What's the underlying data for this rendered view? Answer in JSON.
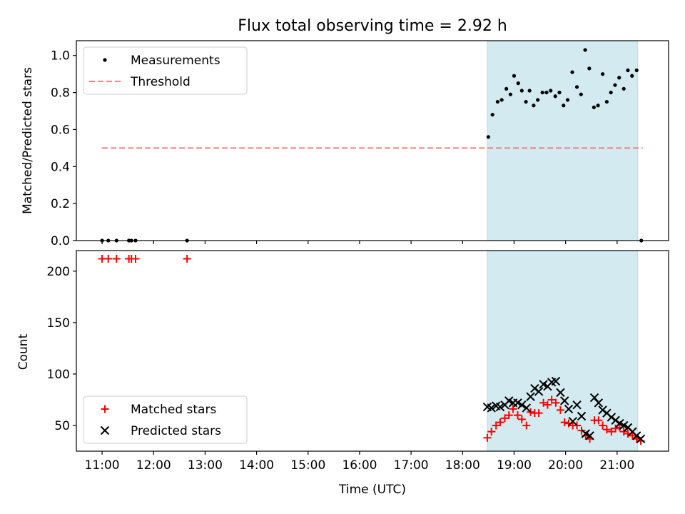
{
  "chart_data": [
    {
      "type": "scatter",
      "title": "Flux total observing time = 2.92 h",
      "xlabel": "",
      "ylabel": "Matched/Predicted stars",
      "xlim": [
        10.5,
        22.0
      ],
      "ylim": [
        0.0,
        1.08
      ],
      "yticks": [
        0.0,
        0.2,
        0.4,
        0.6,
        0.8,
        1.0
      ],
      "ytick_labels": [
        "0.0",
        "0.2",
        "0.4",
        "0.6",
        "0.8",
        "1.0"
      ],
      "grid": false,
      "legend_position": "top-left",
      "shaded_region": {
        "x_start": 18.48,
        "x_end": 21.4,
        "color": "#d2eaf0"
      },
      "series": [
        {
          "name": "Measurements",
          "kind": "points",
          "color": "#000000",
          "points": [
            [
              11.0,
              0.0
            ],
            [
              11.12,
              0.0
            ],
            [
              11.28,
              0.0
            ],
            [
              11.52,
              0.0
            ],
            [
              11.57,
              0.0
            ],
            [
              11.65,
              0.0
            ],
            [
              12.65,
              0.0
            ],
            [
              18.5,
              0.56
            ],
            [
              18.58,
              0.68
            ],
            [
              18.68,
              0.75
            ],
            [
              18.76,
              0.76
            ],
            [
              18.85,
              0.82
            ],
            [
              18.93,
              0.79
            ],
            [
              19.0,
              0.89
            ],
            [
              19.08,
              0.85
            ],
            [
              19.15,
              0.81
            ],
            [
              19.23,
              0.75
            ],
            [
              19.3,
              0.81
            ],
            [
              19.38,
              0.73
            ],
            [
              19.46,
              0.76
            ],
            [
              19.55,
              0.8
            ],
            [
              19.63,
              0.8
            ],
            [
              19.71,
              0.81
            ],
            [
              19.8,
              0.78
            ],
            [
              19.88,
              0.8
            ],
            [
              19.96,
              0.73
            ],
            [
              20.04,
              0.76
            ],
            [
              20.13,
              0.91
            ],
            [
              20.22,
              0.83
            ],
            [
              20.3,
              0.79
            ],
            [
              20.38,
              1.03
            ],
            [
              20.46,
              0.93
            ],
            [
              20.55,
              0.72
            ],
            [
              20.63,
              0.73
            ],
            [
              20.72,
              0.9
            ],
            [
              20.8,
              0.75
            ],
            [
              20.88,
              0.8
            ],
            [
              20.96,
              0.84
            ],
            [
              21.04,
              0.88
            ],
            [
              21.13,
              0.82
            ],
            [
              21.21,
              0.92
            ],
            [
              21.29,
              0.89
            ],
            [
              21.38,
              0.92
            ],
            [
              21.47,
              0.0
            ]
          ]
        },
        {
          "name": "Threshold",
          "kind": "dashed-line",
          "color": "#f08080",
          "points": [
            [
              11.0,
              0.5
            ],
            [
              21.5,
              0.5
            ]
          ]
        }
      ]
    },
    {
      "type": "scatter",
      "title": "",
      "xlabel": "Time (UTC)",
      "ylabel": "Count",
      "xlim": [
        10.5,
        22.0
      ],
      "ylim": [
        25,
        220
      ],
      "xticks": [
        11,
        12,
        13,
        14,
        15,
        16,
        17,
        18,
        19,
        20,
        21
      ],
      "xtick_labels": [
        "11:00",
        "12:00",
        "13:00",
        "14:00",
        "15:00",
        "16:00",
        "17:00",
        "18:00",
        "19:00",
        "20:00",
        "21:00"
      ],
      "yticks": [
        50,
        100,
        150,
        200
      ],
      "ytick_labels": [
        "50",
        "100",
        "150",
        "200"
      ],
      "grid": false,
      "legend_position": "bottom-left",
      "shaded_region": {
        "x_start": 18.48,
        "x_end": 21.4,
        "color": "#d2eaf0"
      },
      "series": [
        {
          "name": "Matched stars",
          "kind": "plus",
          "color": "#ff0000",
          "points": [
            [
              11.0,
              212
            ],
            [
              11.12,
              212
            ],
            [
              11.28,
              212
            ],
            [
              11.52,
              212
            ],
            [
              11.57,
              212
            ],
            [
              11.65,
              212
            ],
            [
              12.65,
              212
            ],
            [
              18.48,
              38
            ],
            [
              18.56,
              44
            ],
            [
              18.65,
              50
            ],
            [
              18.73,
              53
            ],
            [
              18.82,
              57
            ],
            [
              18.9,
              60
            ],
            [
              18.98,
              66
            ],
            [
              19.07,
              60
            ],
            [
              19.15,
              56
            ],
            [
              19.24,
              50
            ],
            [
              19.32,
              63
            ],
            [
              19.4,
              62
            ],
            [
              19.48,
              62
            ],
            [
              19.57,
              72
            ],
            [
              19.65,
              70
            ],
            [
              19.73,
              75
            ],
            [
              19.81,
              72
            ],
            [
              19.9,
              65
            ],
            [
              19.98,
              53
            ],
            [
              20.06,
              52
            ],
            [
              20.14,
              50
            ],
            [
              20.22,
              50
            ],
            [
              20.31,
              45
            ],
            [
              20.39,
              40
            ],
            [
              20.47,
              37
            ],
            [
              20.56,
              55
            ],
            [
              20.64,
              55
            ],
            [
              20.72,
              50
            ],
            [
              20.8,
              46
            ],
            [
              20.89,
              44
            ],
            [
              20.97,
              47
            ],
            [
              21.05,
              48
            ],
            [
              21.13,
              44
            ],
            [
              21.21,
              42
            ],
            [
              21.3,
              40
            ],
            [
              21.38,
              37
            ],
            [
              21.46,
              35
            ]
          ]
        },
        {
          "name": "Predicted stars",
          "kind": "x",
          "color": "#000000",
          "points": [
            [
              18.48,
              68
            ],
            [
              18.56,
              67
            ],
            [
              18.65,
              69
            ],
            [
              18.73,
              68
            ],
            [
              18.82,
              70
            ],
            [
              18.9,
              74
            ],
            [
              18.98,
              72
            ],
            [
              19.07,
              72
            ],
            [
              19.15,
              70
            ],
            [
              19.24,
              67
            ],
            [
              19.32,
              78
            ],
            [
              19.4,
              86
            ],
            [
              19.48,
              83
            ],
            [
              19.57,
              90
            ],
            [
              19.65,
              88
            ],
            [
              19.73,
              92
            ],
            [
              19.81,
              93
            ],
            [
              19.9,
              82
            ],
            [
              19.98,
              74
            ],
            [
              20.06,
              66
            ],
            [
              20.14,
              54
            ],
            [
              20.22,
              70
            ],
            [
              20.31,
              59
            ],
            [
              20.39,
              42
            ],
            [
              20.47,
              40
            ],
            [
              20.56,
              77
            ],
            [
              20.64,
              72
            ],
            [
              20.72,
              65
            ],
            [
              20.8,
              62
            ],
            [
              20.89,
              58
            ],
            [
              20.97,
              55
            ],
            [
              21.05,
              52
            ],
            [
              21.13,
              50
            ],
            [
              21.21,
              48
            ],
            [
              21.3,
              44
            ],
            [
              21.38,
              40
            ],
            [
              21.46,
              37
            ]
          ]
        }
      ]
    }
  ]
}
